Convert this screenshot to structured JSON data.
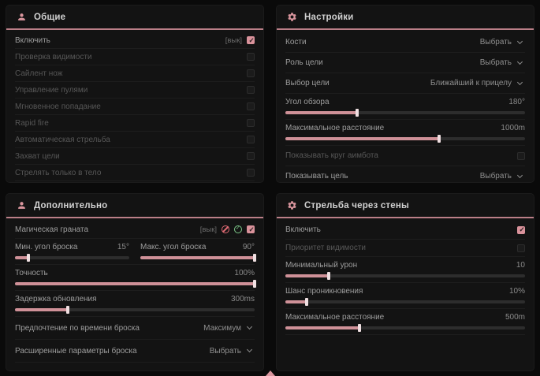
{
  "colors": {
    "accent": "#d9959d",
    "header_line": "#bb7f88",
    "slider_fill": "#cf9198",
    "red_icon": "#e06a74",
    "green_icon": "#7ec98a",
    "panel_bg": "#131313"
  },
  "panels": [
    {
      "title": "Общие",
      "icon": "user-icon",
      "rows": [
        {
          "label": "Включить",
          "hint": "[вык]",
          "checked": true,
          "enabled": true
        },
        {
          "label": "Проверка видимости",
          "checked": false,
          "enabled": false
        },
        {
          "label": "Сайлент нож",
          "checked": false,
          "enabled": false
        },
        {
          "label": "Управление пулями",
          "checked": false,
          "enabled": false
        },
        {
          "label": "Мгновенное попадание",
          "checked": false,
          "enabled": false
        },
        {
          "label": "Rapid fire",
          "checked": false,
          "enabled": false
        },
        {
          "label": "Автоматическая стрельба",
          "checked": false,
          "enabled": false
        },
        {
          "label": "Захват цели",
          "checked": false,
          "enabled": false
        },
        {
          "label": "Стрелять только в тело",
          "checked": false,
          "enabled": false
        }
      ]
    },
    {
      "title": "Настройки",
      "icon": "gear-icon",
      "rows": [
        {
          "label": "Кости",
          "value": "Выбрать"
        },
        {
          "label": "Роль цели",
          "value": "Выбрать"
        },
        {
          "label": "Выбор цели",
          "value": "Ближайший к прицелу"
        },
        {
          "label": "Угол обзора",
          "value": "180°",
          "fill_pct": 30
        },
        {
          "label": "Максимальное расстояние",
          "value": "1000m",
          "fill_pct": 64
        },
        {
          "label": "Показывать круг аимбота",
          "checked": false,
          "enabled": false
        },
        {
          "label": "Показывать цель",
          "value": "Выбрать"
        }
      ]
    },
    {
      "title": "Дополнительно",
      "icon": "user-icon",
      "rows": [
        {
          "label": "Магическая граната",
          "hint": "[вык]",
          "checked": true,
          "enabled": true
        },
        {
          "label": "Мин. угол броска",
          "value": "15°",
          "fill_pct": 12
        },
        {
          "label": "Макс. угол броска",
          "value": "90°",
          "fill_pct": 100
        },
        {
          "label": "Точность",
          "value": "100%",
          "fill_pct": 100
        },
        {
          "label": "Задержка обновления",
          "value": "300ms",
          "fill_pct": 22
        },
        {
          "label": "Предпочтение по времени броска",
          "value": "Максимум"
        },
        {
          "label": "Расширенные параметры броска",
          "value": "Выбрать"
        }
      ]
    },
    {
      "title": "Стрельба через стены",
      "icon": "gear-icon",
      "rows": [
        {
          "label": "Включить",
          "checked": true,
          "enabled": true
        },
        {
          "label": "Приоритет видимости",
          "checked": false,
          "enabled": false
        },
        {
          "label": "Минимальный урон",
          "value": "10",
          "fill_pct": 18
        },
        {
          "label": "Шанс проникновения",
          "value": "10%",
          "fill_pct": 9
        },
        {
          "label": "Максимальное расстояние",
          "value": "500m",
          "fill_pct": 31
        }
      ]
    }
  ]
}
